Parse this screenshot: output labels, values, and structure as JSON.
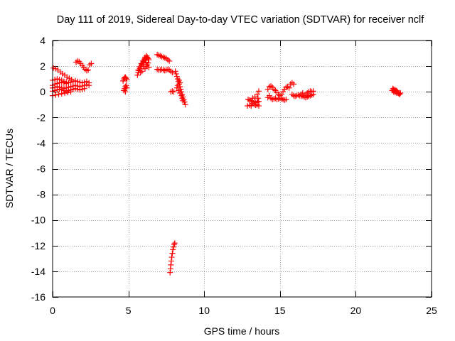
{
  "chart_data": {
    "type": "scatter",
    "title": "Day 111 of 2019, Sidereal Day-to-day VTEC variation (SDTVAR) for receiver nclf",
    "xlabel": "GPS time / hours",
    "ylabel": "SDTVAR / TECUs",
    "xlim": [
      0,
      25
    ],
    "ylim": [
      -16,
      4
    ],
    "x_ticks": [
      0,
      5,
      10,
      15,
      20,
      25
    ],
    "y_ticks": [
      4,
      2,
      0,
      -2,
      -4,
      -6,
      -8,
      -10,
      -12,
      -14,
      -16
    ],
    "grid": true,
    "marker": "plus",
    "colors": {
      "series": "#ff0000",
      "grid": "#a0a0a0",
      "axis": "#000000"
    },
    "series": [
      {
        "name": "SDTVAR",
        "points": [
          [
            0.05,
            1.85
          ],
          [
            0.2,
            1.8
          ],
          [
            0.35,
            1.7
          ],
          [
            0.5,
            1.55
          ],
          [
            0.65,
            1.4
          ],
          [
            0.8,
            1.3
          ],
          [
            0.95,
            1.15
          ],
          [
            1.1,
            1.05
          ],
          [
            1.25,
            0.95
          ],
          [
            0.0,
            0.9
          ],
          [
            0.15,
            0.95
          ],
          [
            0.3,
            1.0
          ],
          [
            0.45,
            0.95
          ],
          [
            0.6,
            0.9
          ],
          [
            0.75,
            0.8
          ],
          [
            0.9,
            0.75
          ],
          [
            0.0,
            0.5
          ],
          [
            0.15,
            0.6
          ],
          [
            0.3,
            0.65
          ],
          [
            0.45,
            0.7
          ],
          [
            0.6,
            0.75
          ],
          [
            0.75,
            0.7
          ],
          [
            0.9,
            0.65
          ],
          [
            1.05,
            0.7
          ],
          [
            1.2,
            0.75
          ],
          [
            1.35,
            0.8
          ],
          [
            1.5,
            0.85
          ],
          [
            1.65,
            0.8
          ],
          [
            1.8,
            0.75
          ],
          [
            1.95,
            0.7
          ],
          [
            2.1,
            0.75
          ],
          [
            2.25,
            0.8
          ],
          [
            2.4,
            0.7
          ],
          [
            0.0,
            0.3
          ],
          [
            0.15,
            0.35
          ],
          [
            0.3,
            0.4
          ],
          [
            0.45,
            0.35
          ],
          [
            0.6,
            0.3
          ],
          [
            0.75,
            0.25
          ],
          [
            0.9,
            0.3
          ],
          [
            1.05,
            0.35
          ],
          [
            1.2,
            0.4
          ],
          [
            1.35,
            0.45
          ],
          [
            1.5,
            0.5
          ],
          [
            1.65,
            0.45
          ],
          [
            1.8,
            0.4
          ],
          [
            1.95,
            0.45
          ],
          [
            2.1,
            0.5
          ],
          [
            2.25,
            0.55
          ],
          [
            2.4,
            0.5
          ],
          [
            0.0,
            0.05
          ],
          [
            0.15,
            0.1
          ],
          [
            0.3,
            0.15
          ],
          [
            0.45,
            0.2
          ],
          [
            0.6,
            0.15
          ],
          [
            0.75,
            0.1
          ],
          [
            0.9,
            0.05
          ],
          [
            1.05,
            0.1
          ],
          [
            1.2,
            0.15
          ],
          [
            1.35,
            0.2
          ],
          [
            1.5,
            0.25
          ],
          [
            1.65,
            0.2
          ],
          [
            1.8,
            0.15
          ],
          [
            1.95,
            0.2
          ],
          [
            2.1,
            0.25
          ],
          [
            0.0,
            -0.3
          ],
          [
            0.2,
            -0.25
          ],
          [
            0.4,
            -0.2
          ],
          [
            0.6,
            -0.15
          ],
          [
            0.8,
            -0.1
          ],
          [
            1.0,
            -0.05
          ],
          [
            1.2,
            0.0
          ],
          [
            1.55,
            2.3
          ],
          [
            1.65,
            2.4
          ],
          [
            1.75,
            2.35
          ],
          [
            1.85,
            2.2
          ],
          [
            1.95,
            2.05
          ],
          [
            2.05,
            1.9
          ],
          [
            2.15,
            1.75
          ],
          [
            2.25,
            1.65
          ],
          [
            2.35,
            1.7
          ],
          [
            2.45,
            2.1
          ],
          [
            2.55,
            2.2
          ],
          [
            4.65,
            0.85
          ],
          [
            4.7,
            1.0
          ],
          [
            4.75,
            1.1
          ],
          [
            4.8,
            1.15
          ],
          [
            4.85,
            1.05
          ],
          [
            4.9,
            0.95
          ],
          [
            4.7,
            0.1
          ],
          [
            4.75,
            0.25
          ],
          [
            4.8,
            0.4
          ],
          [
            4.85,
            0.5
          ],
          [
            4.9,
            0.3
          ],
          [
            4.8,
            0.0
          ],
          [
            5.6,
            1.3
          ],
          [
            5.65,
            1.5
          ],
          [
            5.7,
            1.65
          ],
          [
            5.75,
            1.8
          ],
          [
            5.8,
            1.95
          ],
          [
            5.85,
            2.05
          ],
          [
            5.9,
            2.15
          ],
          [
            5.95,
            2.25
          ],
          [
            6.0,
            2.35
          ],
          [
            6.05,
            2.45
          ],
          [
            6.1,
            2.55
          ],
          [
            6.15,
            2.6
          ],
          [
            6.2,
            2.65
          ],
          [
            6.25,
            2.7
          ],
          [
            6.3,
            2.6
          ],
          [
            6.35,
            2.5
          ],
          [
            5.65,
            1.7
          ],
          [
            5.75,
            1.95
          ],
          [
            5.85,
            2.2
          ],
          [
            5.95,
            2.4
          ],
          [
            6.05,
            2.55
          ],
          [
            6.15,
            2.3
          ],
          [
            6.25,
            2.1
          ],
          [
            6.35,
            1.9
          ],
          [
            6.1,
            1.8
          ],
          [
            6.0,
            1.95
          ],
          [
            5.9,
            1.6
          ],
          [
            5.8,
            1.5
          ],
          [
            6.2,
            2.0
          ],
          [
            6.3,
            2.25
          ],
          [
            6.1,
            2.7
          ],
          [
            6.2,
            2.8
          ],
          [
            6.9,
            2.9
          ],
          [
            7.0,
            2.85
          ],
          [
            7.1,
            2.8
          ],
          [
            7.2,
            2.75
          ],
          [
            7.3,
            2.7
          ],
          [
            7.4,
            2.65
          ],
          [
            7.5,
            2.6
          ],
          [
            7.6,
            2.5
          ],
          [
            7.7,
            2.4
          ],
          [
            6.9,
            1.75
          ],
          [
            7.0,
            1.7
          ],
          [
            7.1,
            1.7
          ],
          [
            7.2,
            1.75
          ],
          [
            7.3,
            1.7
          ],
          [
            7.4,
            1.65
          ],
          [
            7.5,
            1.7
          ],
          [
            7.6,
            1.75
          ],
          [
            7.7,
            1.7
          ],
          [
            7.8,
            1.6
          ],
          [
            7.9,
            1.5
          ],
          [
            8.1,
            1.6
          ],
          [
            8.15,
            1.4
          ],
          [
            8.2,
            1.2
          ],
          [
            8.25,
            1.0
          ],
          [
            8.3,
            0.8
          ],
          [
            8.35,
            0.6
          ],
          [
            8.4,
            0.4
          ],
          [
            8.45,
            0.2
          ],
          [
            8.5,
            0.0
          ],
          [
            8.55,
            -0.2
          ],
          [
            8.6,
            -0.4
          ],
          [
            8.65,
            -0.6
          ],
          [
            8.7,
            -0.8
          ],
          [
            8.75,
            -1.0
          ],
          [
            8.2,
            0.3
          ],
          [
            8.25,
            0.5
          ],
          [
            8.3,
            0.1
          ],
          [
            8.4,
            -0.1
          ],
          [
            8.5,
            -0.3
          ],
          [
            8.55,
            -0.5
          ],
          [
            8.6,
            -0.7
          ],
          [
            8.35,
            0.9
          ],
          [
            8.4,
            0.7
          ],
          [
            7.8,
            0.0
          ],
          [
            7.9,
            0.05
          ],
          [
            8.0,
            0.0
          ],
          [
            7.75,
            -14.1
          ],
          [
            7.78,
            -13.8
          ],
          [
            7.8,
            -13.5
          ],
          [
            7.83,
            -13.2
          ],
          [
            7.86,
            -12.9
          ],
          [
            7.9,
            -12.6
          ],
          [
            7.94,
            -12.3
          ],
          [
            7.98,
            -12.1
          ],
          [
            8.02,
            -11.9
          ],
          [
            8.06,
            -11.8
          ],
          [
            12.85,
            -1.1
          ],
          [
            12.9,
            -0.6
          ],
          [
            13.0,
            -0.65
          ],
          [
            13.1,
            -0.7
          ],
          [
            13.2,
            -0.75
          ],
          [
            13.3,
            -0.8
          ],
          [
            13.4,
            -0.85
          ],
          [
            13.5,
            -0.8
          ],
          [
            13.6,
            -0.75
          ],
          [
            13.2,
            -0.9
          ],
          [
            13.3,
            -1.0
          ],
          [
            13.4,
            -1.05
          ],
          [
            13.5,
            -1.0
          ],
          [
            13.35,
            -0.4
          ],
          [
            13.5,
            -0.2
          ],
          [
            13.6,
            0.05
          ],
          [
            13.0,
            -1.05
          ],
          [
            13.1,
            -1.1
          ],
          [
            13.6,
            -1.1
          ],
          [
            13.55,
            -0.5
          ],
          [
            13.2,
            -0.5
          ],
          [
            14.2,
            -0.45
          ],
          [
            14.3,
            -0.3
          ],
          [
            14.4,
            -0.5
          ],
          [
            14.5,
            -0.6
          ],
          [
            14.6,
            -0.55
          ],
          [
            14.7,
            -0.5
          ],
          [
            14.8,
            -0.6
          ],
          [
            14.9,
            -0.55
          ],
          [
            15.0,
            -0.5
          ],
          [
            15.1,
            -0.55
          ],
          [
            15.2,
            -0.6
          ],
          [
            15.3,
            -0.65
          ],
          [
            15.4,
            -0.6
          ],
          [
            14.2,
            0.2
          ],
          [
            14.3,
            0.4
          ],
          [
            14.4,
            0.45
          ],
          [
            14.5,
            0.35
          ],
          [
            14.6,
            0.2
          ],
          [
            14.7,
            0.1
          ],
          [
            14.8,
            -0.05
          ],
          [
            14.9,
            -0.2
          ],
          [
            15.0,
            -0.3
          ],
          [
            15.1,
            -0.2
          ],
          [
            15.2,
            0.0
          ],
          [
            15.3,
            0.2
          ],
          [
            15.4,
            0.35
          ],
          [
            15.5,
            0.4
          ],
          [
            15.6,
            0.3
          ],
          [
            15.7,
            0.6
          ],
          [
            15.8,
            0.7
          ],
          [
            15.9,
            0.6
          ],
          [
            15.8,
            -0.2
          ],
          [
            15.9,
            -0.3
          ],
          [
            16.0,
            -0.35
          ],
          [
            16.1,
            -0.3
          ],
          [
            16.2,
            -0.25
          ],
          [
            16.3,
            -0.3
          ],
          [
            16.4,
            -0.35
          ],
          [
            16.5,
            -0.3
          ],
          [
            16.6,
            -0.4
          ],
          [
            16.7,
            -0.45
          ],
          [
            16.8,
            -0.4
          ],
          [
            16.9,
            -0.35
          ],
          [
            17.0,
            -0.3
          ],
          [
            17.1,
            -0.25
          ],
          [
            17.2,
            -0.2
          ],
          [
            16.7,
            -0.2
          ],
          [
            16.8,
            -0.1
          ],
          [
            16.9,
            0.0
          ],
          [
            17.0,
            0.05
          ],
          [
            17.1,
            0.0
          ],
          [
            17.2,
            0.05
          ],
          [
            16.6,
            -0.3
          ],
          [
            16.5,
            -0.1
          ],
          [
            16.4,
            -0.2
          ],
          [
            22.4,
            0.1
          ],
          [
            22.45,
            0.25
          ],
          [
            22.5,
            0.2
          ],
          [
            22.55,
            0.1
          ],
          [
            22.6,
            0.15
          ],
          [
            22.65,
            0.05
          ],
          [
            22.7,
            0.1
          ],
          [
            22.75,
            0.0
          ],
          [
            22.8,
            -0.1
          ],
          [
            22.85,
            -0.15
          ],
          [
            22.9,
            -0.2
          ],
          [
            22.95,
            -0.1
          ],
          [
            22.5,
            0.0
          ],
          [
            22.6,
            -0.05
          ],
          [
            22.7,
            -0.1
          ]
        ]
      }
    ]
  }
}
